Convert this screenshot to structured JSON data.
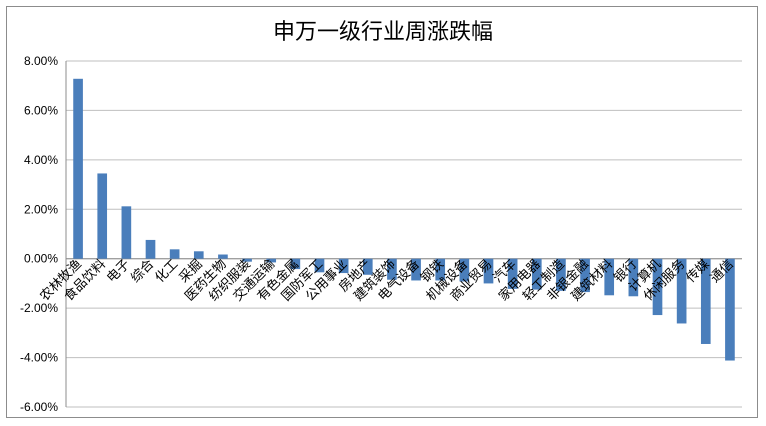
{
  "chart_data": {
    "type": "bar",
    "title": "申万一级行业周涨跌幅",
    "xlabel": "",
    "ylabel": "",
    "ylim": [
      -6,
      8
    ],
    "yticks": [
      "8.00%",
      "6.00%",
      "4.00%",
      "2.00%",
      "0.00%",
      "-2.00%",
      "-4.00%",
      "-6.00%"
    ],
    "grid": true,
    "bar_color": "#4a7ebb",
    "categories": [
      "农林牧渔",
      "食品饮料",
      "电子",
      "综合",
      "化工",
      "采掘",
      "医药生物",
      "纺织服装",
      "交通运输",
      "有色金属",
      "国防军工",
      "公用事业",
      "房地产",
      "建筑装饰",
      "电气设备",
      "钢铁",
      "机械设备",
      "商业贸易",
      "汽车",
      "家用电器",
      "轻工制造",
      "非银金融",
      "建筑材料",
      "银行",
      "计算机",
      "休闲服务",
      "传媒",
      "通信"
    ],
    "values": [
      7.28,
      3.45,
      2.12,
      0.76,
      0.38,
      0.3,
      0.17,
      -0.12,
      -0.15,
      -0.42,
      -0.55,
      -0.58,
      -0.65,
      -0.85,
      -0.88,
      -0.88,
      -0.92,
      -1.0,
      -1.22,
      -1.25,
      -1.3,
      -1.35,
      -1.48,
      -1.52,
      -2.28,
      -2.62,
      -3.45,
      -4.12
    ]
  }
}
